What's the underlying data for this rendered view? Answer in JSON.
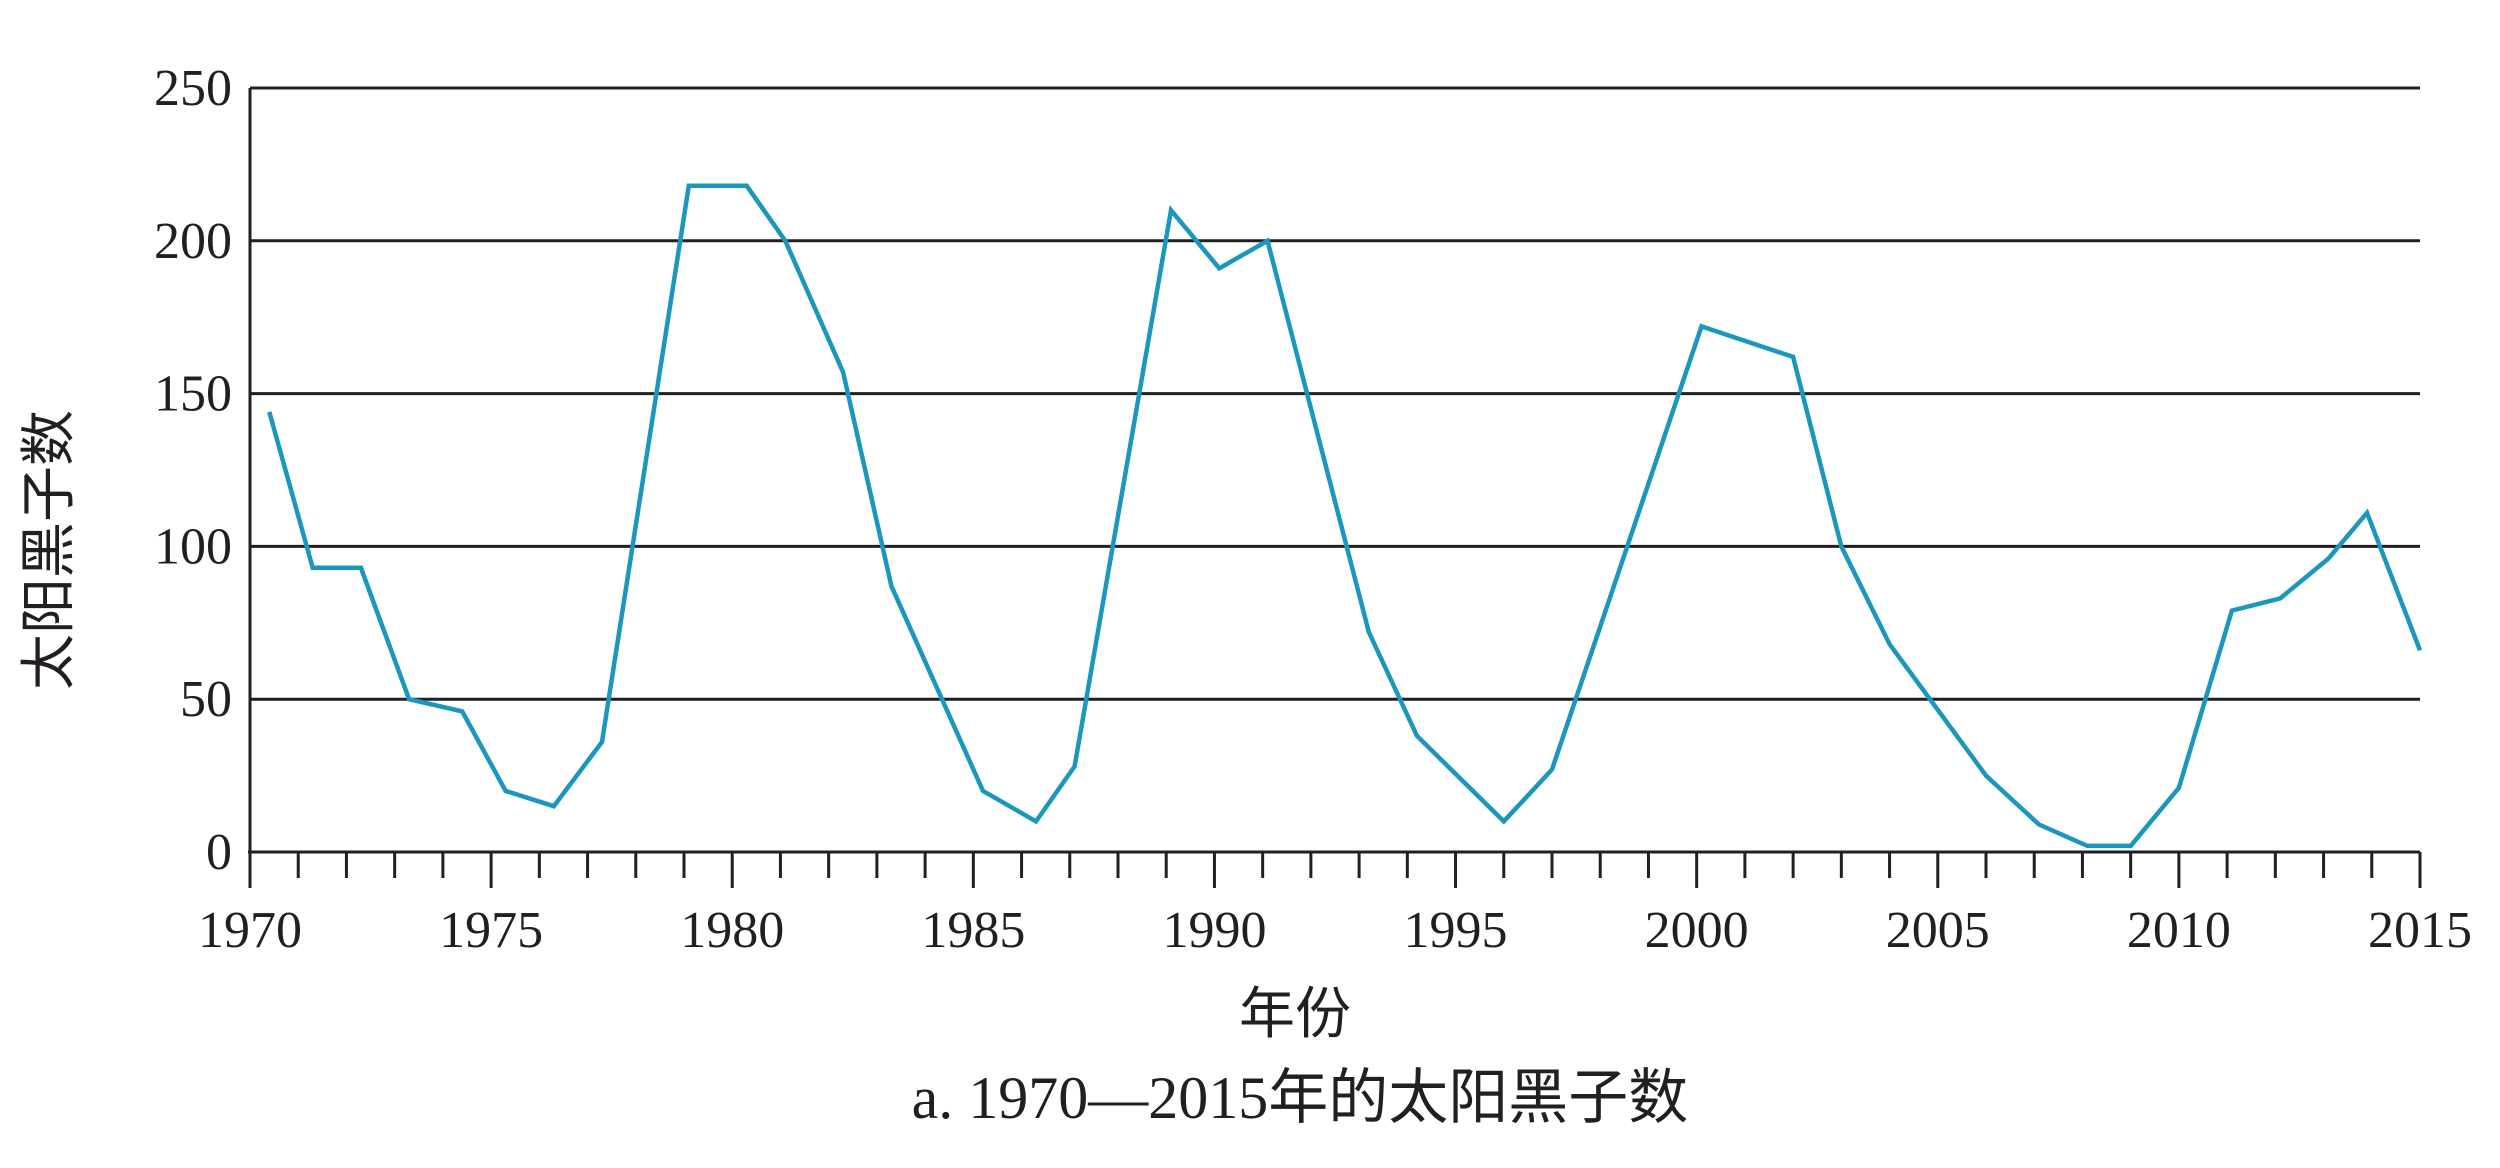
{
  "chart_data": {
    "type": "line",
    "title": "a. 1970—2015年的太阳黑子数",
    "xlabel": "年份",
    "ylabel": "太阳黑子数",
    "xlim": [
      1970,
      2015
    ],
    "ylim": [
      0,
      250
    ],
    "x_ticks": [
      "1970",
      "1975",
      "1980",
      "1985",
      "1990",
      "1995",
      "2000",
      "2005",
      "2010",
      "2015"
    ],
    "y_ticks": [
      "0",
      "50",
      "100",
      "150",
      "200",
      "250"
    ],
    "grid": "horizontal",
    "line_color": "#1b97be",
    "series": [
      {
        "x": [
          1970.4,
          1971.3,
          1972.3,
          1973.3,
          1974.4,
          1975.3,
          1976.3,
          1977.3,
          1979.1,
          1980.3,
          1981.1,
          1982.3,
          1983.3,
          1985.2,
          1986.3,
          1987.1,
          1989.1,
          1990.1,
          1991.1,
          1993.2,
          1994.2,
          1996.0,
          1997.0,
          2000.1,
          2002.0,
          2003.0,
          2004.0,
          2006.0,
          2007.1,
          2008.1,
          2009.0,
          2010.0,
          2011.1,
          2012.1,
          2013.1,
          2013.9,
          2015.0
        ],
        "y": [
          144,
          93,
          93,
          50,
          46,
          20,
          15,
          36,
          218,
          218,
          200,
          157,
          87,
          20,
          10,
          28,
          210,
          191,
          200,
          72,
          38,
          10,
          27,
          172,
          162,
          100,
          68,
          25,
          9,
          2,
          2,
          21,
          79,
          83,
          96,
          111,
          66
        ]
      }
    ]
  }
}
